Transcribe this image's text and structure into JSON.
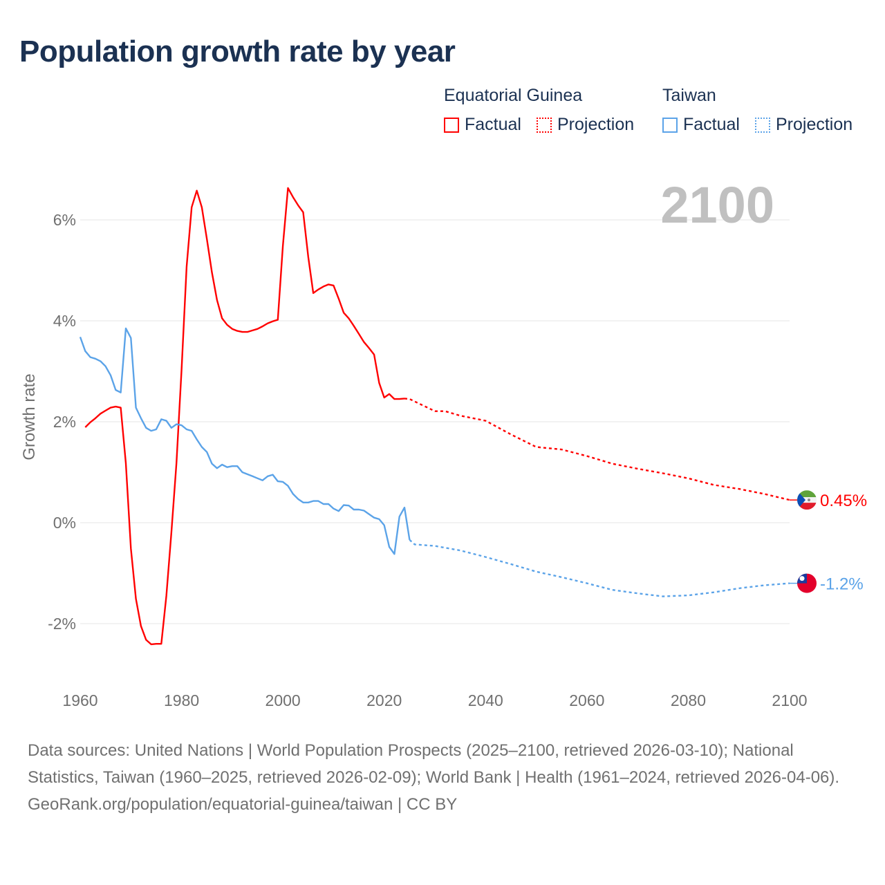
{
  "title": "Population growth rate by year",
  "legend": {
    "groups": [
      {
        "name": "Equatorial Guinea",
        "factual": "Factual",
        "projection": "Projection",
        "color": "#ff0000"
      },
      {
        "name": "Taiwan",
        "factual": "Factual",
        "projection": "Projection",
        "color": "#5ba3e8"
      }
    ]
  },
  "chart_data": {
    "type": "line",
    "title": "Population growth rate by year",
    "xlabel": "",
    "ylabel": "Growth rate",
    "xlim": [
      1960,
      2100
    ],
    "ylim": [
      -3,
      7
    ],
    "xticks": [
      1960,
      1980,
      2000,
      2020,
      2040,
      2060,
      2080,
      2100
    ],
    "yticks": [
      -2,
      0,
      2,
      4,
      6
    ],
    "ytick_labels": [
      "-2%",
      "0%",
      "2%",
      "4%",
      "6%"
    ],
    "grid": true,
    "year_indicator": "2100",
    "series": [
      {
        "name": "Equatorial Guinea",
        "kind": "factual",
        "color": "#ff0000",
        "x": [
          1961,
          1962,
          1963,
          1964,
          1965,
          1966,
          1967,
          1968,
          1969,
          1970,
          1971,
          1972,
          1973,
          1974,
          1975,
          1976,
          1977,
          1978,
          1979,
          1980,
          1981,
          1982,
          1983,
          1984,
          1985,
          1986,
          1987,
          1988,
          1989,
          1990,
          1991,
          1992,
          1993,
          1994,
          1995,
          1996,
          1997,
          1998,
          1999,
          2000,
          2001,
          2002,
          2003,
          2004,
          2005,
          2006,
          2007,
          2008,
          2009,
          2010,
          2011,
          2012,
          2013,
          2014,
          2015,
          2016,
          2017,
          2018,
          2019,
          2020,
          2021,
          2022,
          2023,
          2024
        ],
        "y": [
          1.89,
          1.99,
          2.07,
          2.16,
          2.22,
          2.28,
          2.3,
          2.28,
          1.18,
          -0.51,
          -1.51,
          -2.05,
          -2.32,
          -2.41,
          -2.4,
          -2.4,
          -1.45,
          -0.19,
          1.18,
          3.03,
          5.07,
          6.25,
          6.58,
          6.25,
          5.62,
          4.96,
          4.41,
          4.05,
          3.92,
          3.84,
          3.8,
          3.78,
          3.78,
          3.81,
          3.84,
          3.89,
          3.95,
          3.99,
          4.02,
          5.48,
          6.63,
          6.45,
          6.29,
          6.15,
          5.27,
          4.55,
          4.62,
          4.68,
          4.72,
          4.7,
          4.44,
          4.16,
          4.05,
          3.9,
          3.74,
          3.58,
          3.46,
          3.33,
          2.77,
          2.48,
          2.55,
          2.45,
          2.45,
          2.46
        ]
      },
      {
        "name": "Equatorial Guinea",
        "kind": "projection",
        "color": "#ff0000",
        "x": [
          2024,
          2025,
          2030,
          2032,
          2035,
          2040,
          2045,
          2050,
          2055,
          2060,
          2065,
          2070,
          2075,
          2080,
          2085,
          2090,
          2095,
          2100
        ],
        "y": [
          2.46,
          2.45,
          2.21,
          2.21,
          2.12,
          2.02,
          1.75,
          1.5,
          1.45,
          1.32,
          1.17,
          1.07,
          0.98,
          0.88,
          0.75,
          0.67,
          0.57,
          0.45
        ]
      },
      {
        "name": "Taiwan",
        "kind": "factual",
        "color": "#5ba3e8",
        "x": [
          1960,
          1961,
          1962,
          1963,
          1964,
          1965,
          1966,
          1967,
          1968,
          1969,
          1970,
          1971,
          1972,
          1973,
          1974,
          1975,
          1976,
          1977,
          1978,
          1979,
          1980,
          1981,
          1982,
          1983,
          1984,
          1985,
          1986,
          1987,
          1988,
          1989,
          1990,
          1991,
          1992,
          1993,
          1994,
          1995,
          1996,
          1997,
          1998,
          1999,
          2000,
          2001,
          2002,
          2003,
          2004,
          2005,
          2006,
          2007,
          2008,
          2009,
          2010,
          2011,
          2012,
          2013,
          2014,
          2015,
          2016,
          2017,
          2018,
          2019,
          2020,
          2021,
          2022,
          2023,
          2024,
          2025
        ],
        "y": [
          3.68,
          3.4,
          3.28,
          3.25,
          3.2,
          3.1,
          2.92,
          2.63,
          2.58,
          3.85,
          3.66,
          2.28,
          2.07,
          1.88,
          1.82,
          1.85,
          2.05,
          2.02,
          1.88,
          1.95,
          1.93,
          1.85,
          1.82,
          1.65,
          1.5,
          1.4,
          1.17,
          1.08,
          1.15,
          1.1,
          1.12,
          1.12,
          1.0,
          0.96,
          0.92,
          0.88,
          0.84,
          0.92,
          0.95,
          0.82,
          0.81,
          0.73,
          0.57,
          0.47,
          0.4,
          0.4,
          0.43,
          0.43,
          0.37,
          0.37,
          0.28,
          0.23,
          0.35,
          0.34,
          0.26,
          0.26,
          0.24,
          0.17,
          0.1,
          0.07,
          -0.05,
          -0.48,
          -0.62,
          0.12,
          0.3,
          -0.34
        ]
      },
      {
        "name": "Taiwan",
        "kind": "projection",
        "color": "#5ba3e8",
        "x": [
          2025,
          2026,
          2030,
          2035,
          2040,
          2045,
          2050,
          2055,
          2060,
          2065,
          2070,
          2075,
          2080,
          2085,
          2090,
          2095,
          2100
        ],
        "y": [
          -0.34,
          -0.43,
          -0.46,
          -0.55,
          -0.68,
          -0.82,
          -0.97,
          -1.08,
          -1.2,
          -1.33,
          -1.4,
          -1.46,
          -1.44,
          -1.38,
          -1.3,
          -1.24,
          -1.2
        ]
      }
    ],
    "end_labels": [
      {
        "series": "Equatorial Guinea",
        "value": 0.45,
        "text": "0.45%",
        "color": "#ff0000",
        "flag": "equatorial-guinea-flag"
      },
      {
        "series": "Taiwan",
        "value": -1.2,
        "text": "-1.2%",
        "color": "#5ba3e8",
        "flag": "taiwan-flag"
      }
    ]
  },
  "footer": {
    "sources": "Data sources: United Nations | World Population Prospects (2025–2100, retrieved 2026-03-10); National Statistics, Taiwan (1960–2025, retrieved 2026-02-09); World Bank | Health (1961–2024, retrieved 2026-04-06).",
    "credit": "GeoRank.org/population/equatorial-guinea/taiwan | CC BY"
  }
}
